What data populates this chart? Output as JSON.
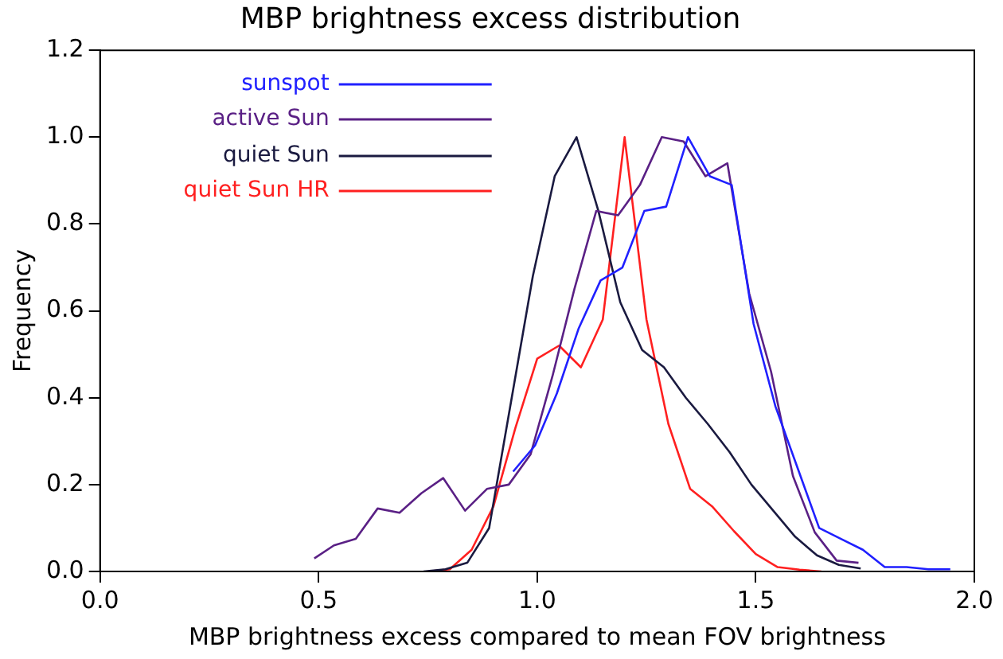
{
  "chart_data": {
    "type": "line",
    "title": "MBP brightness excess distribution",
    "xlabel": "MBP brightness excess compared to mean FOV brightness",
    "ylabel": "Frequency",
    "xlim": [
      0,
      2
    ],
    "xticks": [
      {
        "value": 0,
        "label": "0.0"
      },
      {
        "value": 0.5,
        "label": "0.5"
      },
      {
        "value": 1,
        "label": "1.0"
      },
      {
        "value": 1.5,
        "label": "1.5"
      },
      {
        "value": 2,
        "label": "2.0"
      }
    ],
    "ylim": [
      0,
      1.2
    ],
    "yticks": [
      {
        "value": 0,
        "label": "0.0"
      },
      {
        "value": 0.2,
        "label": "0.2"
      },
      {
        "value": 0.4,
        "label": "0.4"
      },
      {
        "value": 0.6,
        "label": "0.6"
      },
      {
        "value": 0.8,
        "label": "0.8"
      },
      {
        "value": 1,
        "label": "1.0"
      },
      {
        "value": 1.2,
        "label": "1.2"
      }
    ],
    "grid": false,
    "legend": "top left",
    "marker": "none",
    "line_style": "solid",
    "series": [
      {
        "name": "sunspot",
        "color": "#2020ff",
        "x": [
          0.945,
          0.995,
          1.045,
          1.095,
          1.145,
          1.195,
          1.245,
          1.295,
          1.345,
          1.395,
          1.445,
          1.495,
          1.545,
          1.595,
          1.645,
          1.695,
          1.745,
          1.795,
          1.845,
          1.895,
          1.945
        ],
        "values": [
          0.23,
          0.29,
          0.41,
          0.56,
          0.67,
          0.7,
          0.83,
          0.84,
          1.0,
          0.91,
          0.89,
          0.57,
          0.38,
          0.24,
          0.1,
          0.075,
          0.05,
          0.01,
          0.01,
          0.005,
          0.005
        ]
      },
      {
        "name": "active Sun",
        "color": "#5a2085",
        "x": [
          0.49,
          0.535,
          0.585,
          0.635,
          0.685,
          0.735,
          0.785,
          0.835,
          0.885,
          0.935,
          0.985,
          1.035,
          1.085,
          1.135,
          1.185,
          1.235,
          1.285,
          1.335,
          1.385,
          1.435,
          1.485,
          1.535,
          1.585,
          1.635,
          1.685,
          1.735
        ],
        "values": [
          0.03,
          0.06,
          0.075,
          0.145,
          0.135,
          0.18,
          0.215,
          0.14,
          0.19,
          0.2,
          0.27,
          0.45,
          0.65,
          0.83,
          0.82,
          0.89,
          1.0,
          0.99,
          0.91,
          0.94,
          0.64,
          0.46,
          0.22,
          0.09,
          0.025,
          0.02
        ]
      },
      {
        "name": "quiet Sun",
        "color": "#1a1a40",
        "x": [
          0.74,
          0.79,
          0.84,
          0.89,
          0.94,
          0.99,
          1.04,
          1.09,
          1.14,
          1.19,
          1.24,
          1.29,
          1.34,
          1.39,
          1.44,
          1.49,
          1.54,
          1.59,
          1.64,
          1.69,
          1.74
        ],
        "values": [
          0,
          0.005,
          0.02,
          0.1,
          0.39,
          0.68,
          0.91,
          1.0,
          0.83,
          0.62,
          0.51,
          0.47,
          0.4,
          0.34,
          0.275,
          0.2,
          0.14,
          0.08,
          0.037,
          0.015,
          0.007
        ]
      },
      {
        "name": "quiet Sun HR",
        "color": "#ff2020",
        "x": [
          0.75,
          0.8,
          0.85,
          0.9,
          0.95,
          1.0,
          1.05,
          1.1,
          1.15,
          1.2,
          1.25,
          1.3,
          1.35,
          1.4,
          1.45,
          1.5,
          1.55,
          1.6,
          1.65
        ],
        "values": [
          0,
          0.005,
          0.05,
          0.15,
          0.33,
          0.49,
          0.52,
          0.47,
          0.58,
          1.0,
          0.58,
          0.34,
          0.19,
          0.15,
          0.093,
          0.04,
          0.01,
          0.004,
          0
        ]
      }
    ]
  }
}
